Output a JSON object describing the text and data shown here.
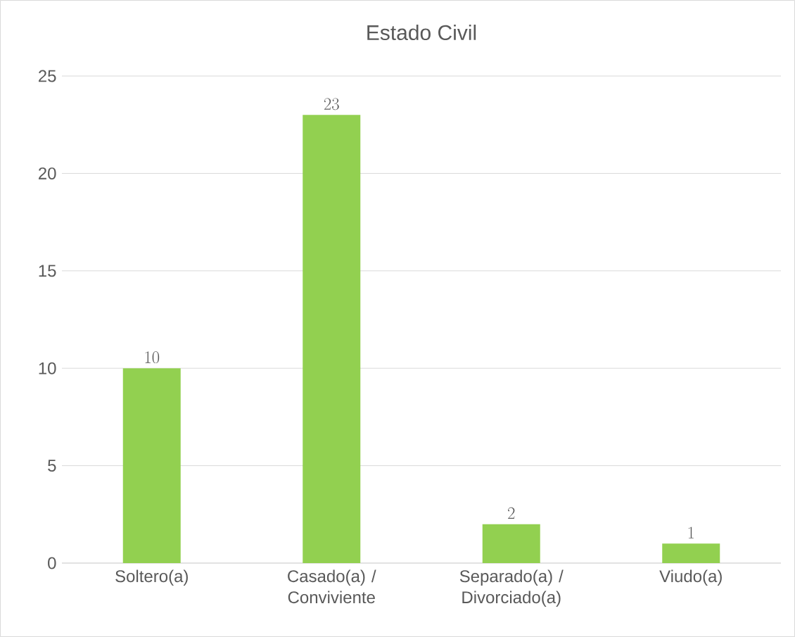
{
  "chart_data": {
    "type": "bar",
    "title": "Estado Civil",
    "categories": [
      "Soltero(a)",
      "Casado(a) / Conviviente",
      "Separado(a) / Divorciado(a)",
      "Viudo(a)"
    ],
    "values": [
      10,
      23,
      2,
      1
    ],
    "color": "#92d050",
    "ylim": [
      0,
      25
    ],
    "yticks": [
      0,
      5,
      10,
      15,
      20,
      25
    ],
    "grid": "y",
    "data_labels": true
  }
}
